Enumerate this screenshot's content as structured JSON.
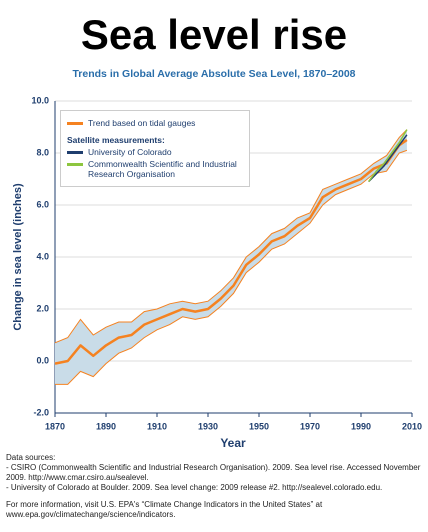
{
  "chart_data": {
    "type": "line",
    "title": "Sea level rise",
    "subtitle": "Trends in Global Average Absolute Sea Level, 1870–2008",
    "x_label": "Year",
    "y_label": "Change in sea level (inches)",
    "xlim": [
      1870,
      2010
    ],
    "xticks": [
      1870,
      1890,
      1910,
      1930,
      1950,
      1970,
      1990,
      2010
    ],
    "ylim": [
      -2,
      10
    ],
    "yticks": [
      {
        "value": -2,
        "label": "-2.0"
      },
      {
        "value": 0,
        "label": "0.0"
      },
      {
        "value": 2,
        "label": "2.0"
      },
      {
        "value": 4,
        "label": "4.0"
      },
      {
        "value": 6,
        "label": "6.0"
      },
      {
        "value": 8,
        "label": "8.0"
      },
      {
        "value": 10,
        "label": "10.0"
      }
    ],
    "grid": true,
    "legend_location": "upper left",
    "legend_heading": "Satellite measurements:",
    "series": [
      {
        "name": "Trend based on tidal gauges",
        "color": "#f58220",
        "x": [
          1870,
          1875,
          1880,
          1885,
          1890,
          1895,
          1900,
          1905,
          1910,
          1915,
          1920,
          1925,
          1930,
          1935,
          1940,
          1945,
          1950,
          1955,
          1960,
          1965,
          1970,
          1975,
          1980,
          1985,
          1990,
          1995,
          2000,
          2005,
          2008
        ],
        "values": [
          -0.1,
          0.0,
          0.6,
          0.2,
          0.6,
          0.9,
          1.0,
          1.4,
          1.6,
          1.8,
          2.0,
          1.9,
          2.0,
          2.4,
          2.9,
          3.7,
          4.1,
          4.6,
          4.8,
          5.2,
          5.5,
          6.3,
          6.6,
          6.8,
          7.0,
          7.4,
          7.6,
          8.3,
          8.5
        ],
        "lower": [
          -0.9,
          -0.9,
          -0.4,
          -0.6,
          -0.1,
          0.3,
          0.5,
          0.9,
          1.2,
          1.4,
          1.7,
          1.6,
          1.7,
          2.1,
          2.6,
          3.4,
          3.8,
          4.3,
          4.5,
          4.9,
          5.3,
          6.0,
          6.4,
          6.6,
          6.8,
          7.2,
          7.3,
          8.0,
          8.1
        ],
        "upper": [
          0.7,
          0.9,
          1.6,
          1.0,
          1.3,
          1.5,
          1.5,
          1.9,
          2.0,
          2.2,
          2.3,
          2.2,
          2.3,
          2.7,
          3.2,
          4.0,
          4.4,
          4.9,
          5.1,
          5.5,
          5.7,
          6.6,
          6.8,
          7.0,
          7.2,
          7.6,
          7.9,
          8.6,
          8.9
        ]
      },
      {
        "name": "University of Colorado",
        "color": "#1f3e6e",
        "x": [
          1993,
          1996,
          1999,
          2002,
          2005,
          2008
        ],
        "values": [
          6.9,
          7.2,
          7.5,
          7.9,
          8.3,
          8.7
        ]
      },
      {
        "name": "Commonwealth Scientific and Industrial Research Organisation",
        "color": "#8dc63f",
        "x": [
          1993,
          1996,
          1999,
          2002,
          2005,
          2008
        ],
        "values": [
          6.9,
          7.3,
          7.6,
          8.0,
          8.4,
          8.9
        ]
      }
    ]
  },
  "footer": {
    "sources_heading": "Data sources:",
    "sources": [
      "- CSIRO (Commonwealth Scientific and Industrial Research Organisation). 2009. Sea level rise. Accessed November 2009. http://www.cmar.csiro.au/sealevel.",
      "- University of Colorado at Boulder. 2009. Sea level change: 2009 release #2. http://sealevel.colorado.edu."
    ],
    "more_info": "For more information, visit U.S. EPA's “Climate Change Indicators in the United States” at www.epa.gov/climatechange/science/indicators."
  }
}
